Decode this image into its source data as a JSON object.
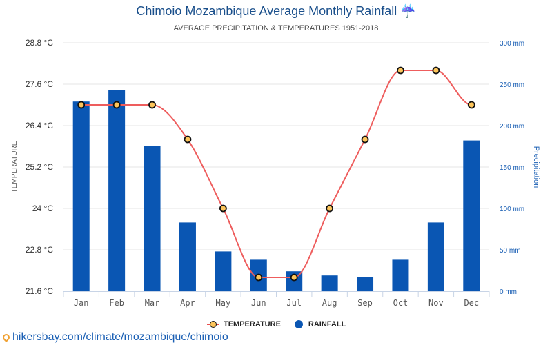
{
  "header": {
    "title": "Chimoio Mozambique Average Monthly Rainfall ☔",
    "subtitle": "AVERAGE PRECIPITATION & TEMPERATURES 1951-2018"
  },
  "legend": {
    "temperature": "TEMPERATURE",
    "rainfall": "RAINFALL"
  },
  "source": "hikersbay.com/climate/mozambique/chimoio",
  "colors": {
    "bar": "#0a56b3",
    "line": "#ee5d5d",
    "marker": "#fdc55a",
    "grid": "#e4e4e4"
  },
  "chart_data": {
    "type": "bar+line",
    "title": "Chimoio Mozambique Average Monthly Rainfall",
    "subtitle": "AVERAGE PRECIPITATION & TEMPERATURES 1951-2018",
    "categories": [
      "Jan",
      "Feb",
      "Mar",
      "Apr",
      "May",
      "Jun",
      "Jul",
      "Aug",
      "Sep",
      "Oct",
      "Nov",
      "Dec"
    ],
    "series": [
      {
        "name": "RAINFALL",
        "type": "bar",
        "axis": "right",
        "unit": "mm",
        "values": [
          229,
          243,
          175,
          83,
          48,
          38,
          24,
          19,
          17,
          38,
          83,
          182
        ]
      },
      {
        "name": "TEMPERATURE",
        "type": "line",
        "axis": "left",
        "unit": "°C",
        "values": [
          27,
          27,
          27,
          26,
          24,
          22,
          22,
          24,
          26,
          28,
          28,
          27
        ]
      }
    ],
    "y_left": {
      "label": "TEMPERATURE",
      "range": [
        21.6,
        28.8
      ],
      "ticks": [
        "21.6 °C",
        "22.8 °C",
        "24 °C",
        "25.2 °C",
        "26.4 °C",
        "27.6 °C",
        "28.8 °C"
      ]
    },
    "y_right": {
      "label": "Precipitation",
      "range": [
        0,
        300
      ],
      "ticks": [
        "0 mm",
        "50 mm",
        "100 mm",
        "150 mm",
        "200 mm",
        "250 mm",
        "300 mm"
      ]
    },
    "grid": true,
    "legend_position": "bottom"
  }
}
